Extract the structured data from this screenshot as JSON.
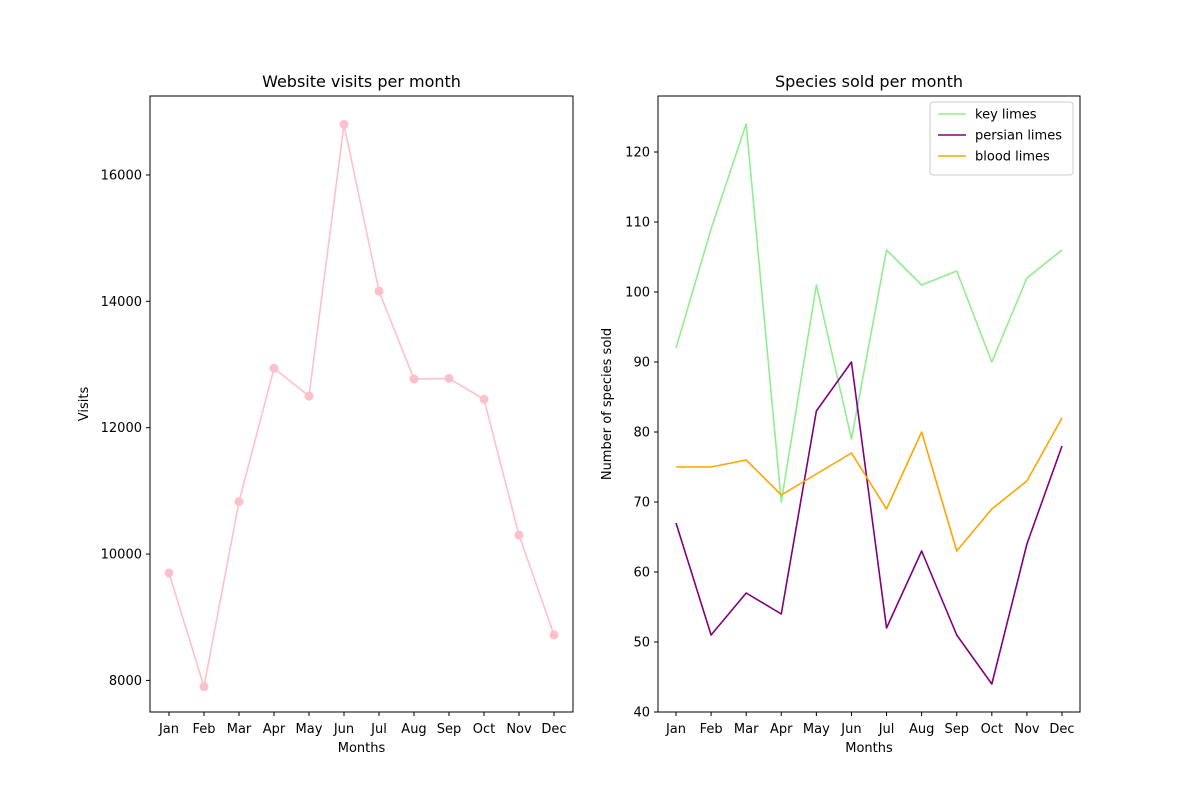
{
  "chart_data": [
    {
      "type": "line",
      "title": "Website visits per month",
      "xlabel": "Months",
      "ylabel": "Visits",
      "categories": [
        "Jan",
        "Feb",
        "Mar",
        "Apr",
        "May",
        "Jun",
        "Jul",
        "Aug",
        "Sep",
        "Oct",
        "Nov",
        "Dec"
      ],
      "yticks": [
        8000,
        10000,
        12000,
        14000,
        16000
      ],
      "ylim": [
        7500,
        17250
      ],
      "grid": false,
      "markers": true,
      "series": [
        {
          "color": "#ffc0cb",
          "values": [
            9700,
            7900,
            10830,
            12940,
            12500,
            16800,
            14160,
            12770,
            12780,
            12450,
            10300,
            8720
          ]
        }
      ]
    },
    {
      "type": "line",
      "title": "Species sold per month",
      "xlabel": "Months",
      "ylabel": "Number of species sold",
      "categories": [
        "Jan",
        "Feb",
        "Mar",
        "Apr",
        "May",
        "Jun",
        "Jul",
        "Aug",
        "Sep",
        "Oct",
        "Nov",
        "Dec"
      ],
      "yticks": [
        40,
        50,
        60,
        70,
        80,
        90,
        100,
        110,
        120
      ],
      "ylim": [
        40,
        128
      ],
      "grid": false,
      "markers": false,
      "legend": "top-right",
      "series": [
        {
          "name": "key limes",
          "color": "#90ee90",
          "values": [
            92,
            109,
            124,
            70,
            101,
            79,
            106,
            101,
            103,
            90,
            102,
            106
          ]
        },
        {
          "name": "persian limes",
          "color": "#800080",
          "values": [
            67,
            51,
            57,
            54,
            83,
            90,
            52,
            63,
            51,
            44,
            64,
            78
          ]
        },
        {
          "name": "blood limes",
          "color": "#ffa500",
          "values": [
            75,
            75,
            76,
            71,
            74,
            77,
            69,
            80,
            63,
            69,
            73,
            82
          ]
        }
      ]
    }
  ]
}
